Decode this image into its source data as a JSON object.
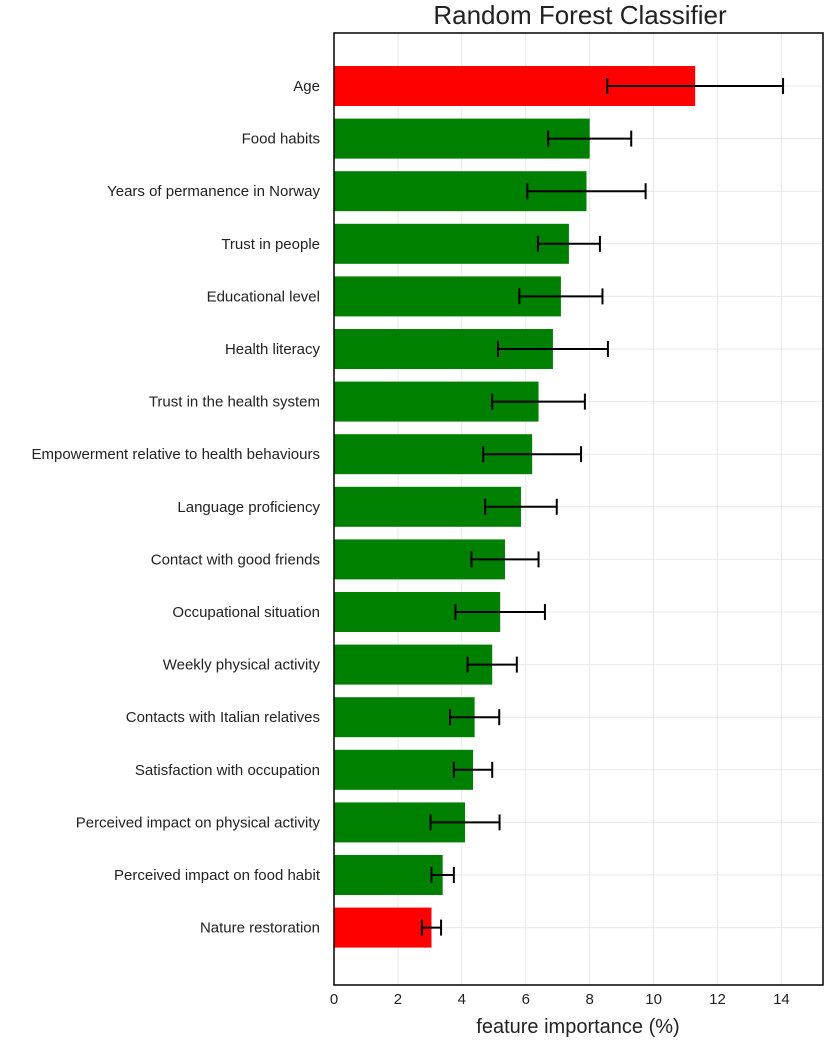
{
  "chart_data": {
    "type": "bar",
    "orientation": "horizontal",
    "title": "Random Forest Classifier",
    "xlabel": "feature importance (%)",
    "ylabel": "",
    "xlim": [
      0,
      15.3
    ],
    "xticks": [
      0,
      2,
      4,
      6,
      8,
      10,
      12,
      14
    ],
    "grid": true,
    "colors": {
      "highlight": "#ff0000",
      "default": "#008000",
      "error_bar": "#000000"
    },
    "bars": [
      {
        "label": "Age",
        "value": 11.3,
        "error": 2.75,
        "color": "#ff0000"
      },
      {
        "label": "Food habits",
        "value": 8.0,
        "error": 1.3,
        "color": "#008000"
      },
      {
        "label": "Years of permanence in Norway",
        "value": 7.9,
        "error": 1.85,
        "color": "#008000"
      },
      {
        "label": "Trust in people",
        "value": 7.35,
        "error": 0.97,
        "color": "#008000"
      },
      {
        "label": "Educational level",
        "value": 7.1,
        "error": 1.3,
        "color": "#008000"
      },
      {
        "label": "Health literacy",
        "value": 6.85,
        "error": 1.72,
        "color": "#008000"
      },
      {
        "label": "Trust in the health system",
        "value": 6.4,
        "error": 1.45,
        "color": "#008000"
      },
      {
        "label": "Empowerment relative to health behaviours",
        "value": 6.2,
        "error": 1.53,
        "color": "#008000"
      },
      {
        "label": "Language proficiency",
        "value": 5.85,
        "error": 1.12,
        "color": "#008000"
      },
      {
        "label": "Contact with good friends",
        "value": 5.35,
        "error": 1.05,
        "color": "#008000"
      },
      {
        "label": "Occupational situation",
        "value": 5.2,
        "error": 1.4,
        "color": "#008000"
      },
      {
        "label": "Weekly physical activity",
        "value": 4.95,
        "error": 0.77,
        "color": "#008000"
      },
      {
        "label": "Contacts with Italian relatives",
        "value": 4.4,
        "error": 0.77,
        "color": "#008000"
      },
      {
        "label": "Satisfaction with occupation",
        "value": 4.35,
        "error": 0.6,
        "color": "#008000"
      },
      {
        "label": "Perceived impact on physical activity",
        "value": 4.1,
        "error": 1.08,
        "color": "#008000"
      },
      {
        "label": "Perceived impact on food habit",
        "value": 3.4,
        "error": 0.35,
        "color": "#008000"
      },
      {
        "label": "Nature restoration",
        "value": 3.05,
        "error": 0.3,
        "color": "#ff0000"
      }
    ]
  }
}
